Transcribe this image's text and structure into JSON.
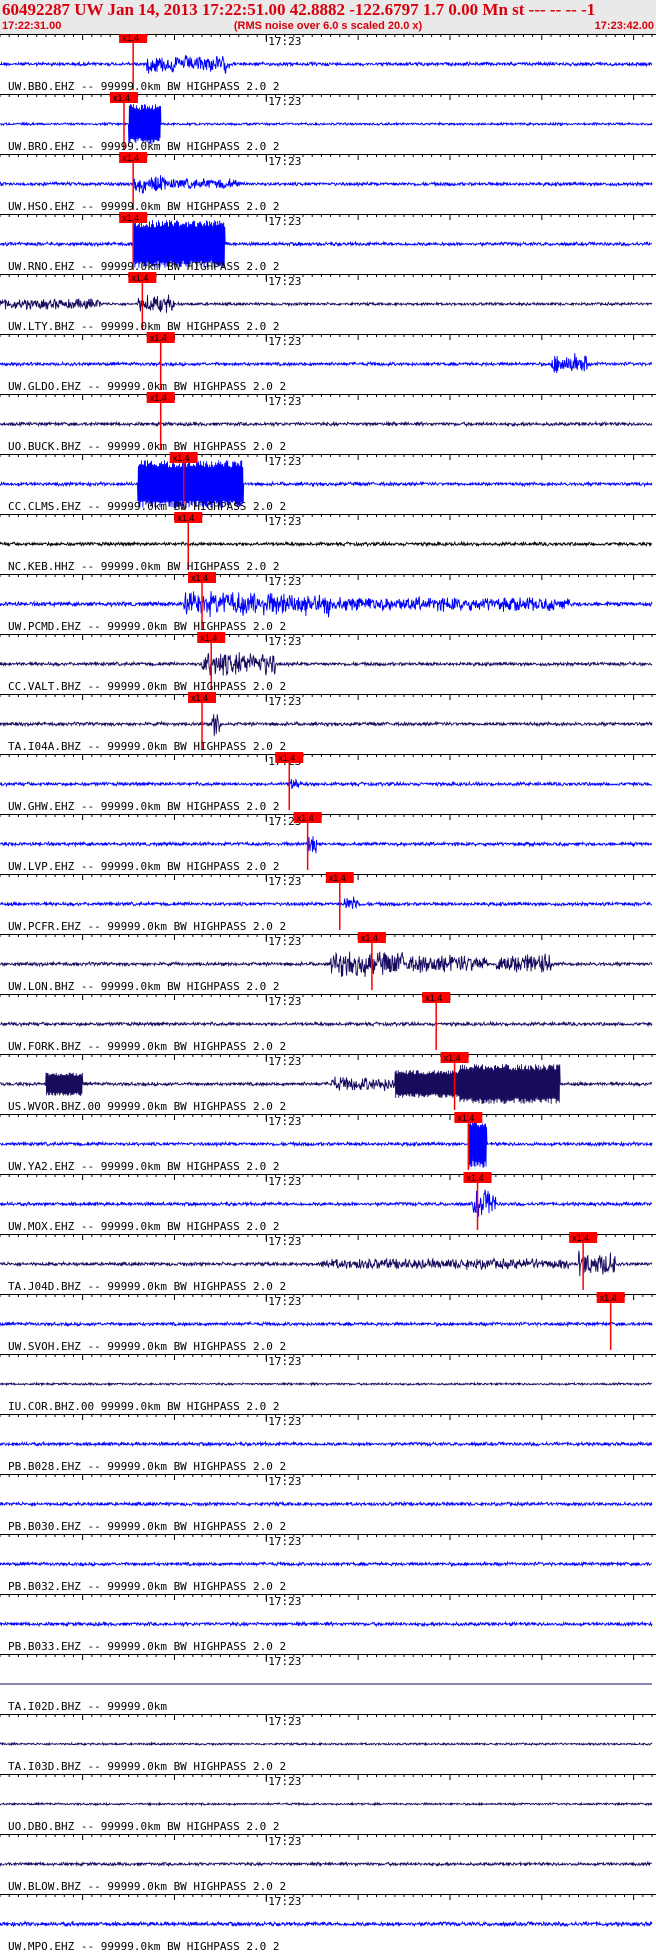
{
  "header": {
    "title": "60492287 UW Jan 14, 2013 17:22:51.00   42.8882 -122.6797  1.7 0.00 Mn st --- -- --   -1",
    "start_time": "17:22:31.00",
    "note": "(RMS noise over 6.0 s scaled 20.0 x)",
    "end_time": "17:23:42.00"
  },
  "colors": {
    "header_text": "#d8000c",
    "header_bg": "#e9e9e9",
    "blue": "#0000ff",
    "navy": "#1a0a5e",
    "black": "#000000",
    "pick": "#ff0000"
  },
  "chart_data": {
    "type": "seismogram record section",
    "time_window": [
      "17:22:31.00",
      "17:23:42.00"
    ],
    "minute_marker": "17:23",
    "pick_label": "x1.4",
    "traces": [
      {
        "label": "UW.BBO.EHZ -- 99999.0km BW  HIGHPASS  2.0  2",
        "color": "blue",
        "pick_s": 14.5,
        "amp": 0.5,
        "bursts": [
          [
            16,
            25,
            2.5
          ]
        ],
        "wide": 0
      },
      {
        "label": "UW.BRO.EHZ -- 99999.0km BW  HIGHPASS  2.0  2",
        "color": "blue",
        "pick_s": 13.5,
        "amp": 0.35,
        "bursts": [
          [
            14,
            17.5,
            5
          ]
        ],
        "wide": 1
      },
      {
        "label": "UW.HSO.EHZ -- 99999.0km BW  HIGHPASS  2.0  2",
        "color": "blue",
        "pick_s": 14.5,
        "amp": 0.5,
        "bursts": [
          [
            14.5,
            18,
            2.5
          ],
          [
            18,
            26,
            1.5
          ]
        ],
        "wide": 0
      },
      {
        "label": "UW.RNO.EHZ -- 99999.0km BW  HIGHPASS  2.0  2",
        "color": "blue",
        "pick_s": 14.5,
        "amp": 0.5,
        "bursts": [
          [
            14.5,
            24.5,
            6
          ]
        ],
        "wide": 1
      },
      {
        "label": "UW.LTY.BHZ -- 99999.0km BW  HIGHPASS  2.0  2",
        "color": "navy",
        "pick_s": 15.5,
        "amp": 0.4,
        "bursts": [
          [
            0,
            11,
            1.5
          ],
          [
            15,
            19,
            2.5
          ]
        ],
        "wide": 0
      },
      {
        "label": "UW.GLDO.EHZ -- 99999.0km BW  HIGHPASS  2.0  2",
        "color": "blue",
        "pick_s": 17.5,
        "amp": 0.5,
        "bursts": [
          [
            60,
            64,
            3
          ]
        ],
        "wide": 0
      },
      {
        "label": "UO.BUCK.BHZ -- 99999.0km BW  HIGHPASS  2.0  2",
        "color": "navy",
        "pick_s": 17.5,
        "amp": 0.5,
        "bursts": [],
        "wide": 0
      },
      {
        "label": "CC.CLMS.EHZ -- 99999.0km BW  HIGHPASS  2.0  2",
        "color": "blue",
        "pick_s": 20,
        "amp": 0.5,
        "bursts": [
          [
            15,
            26.5,
            6
          ]
        ],
        "wide": 1
      },
      {
        "label": "NC.KEB.HHZ -- 99999.0km BW  HIGHPASS  2.0  2",
        "color": "black",
        "pick_s": 20.5,
        "amp": 0.5,
        "bursts": [],
        "wide": 0
      },
      {
        "label": "UW.PCMD.EHZ -- 99999.0km BW  HIGHPASS  2.0  2",
        "color": "blue",
        "pick_s": 22,
        "amp": 0.6,
        "bursts": [
          [
            20,
            36,
            3.5
          ],
          [
            36,
            62,
            2
          ]
        ],
        "wide": 0
      },
      {
        "label": "CC.VALT.BHZ -- 99999.0km BW  HIGHPASS  2.0  2",
        "color": "navy",
        "pick_s": 23,
        "amp": 0.5,
        "bursts": [
          [
            22,
            30,
            3.5
          ]
        ],
        "wide": 0
      },
      {
        "label": "TA.I04A.BHZ -- 99999.0km BW  HIGHPASS  2.0  2",
        "color": "navy",
        "pick_s": 22,
        "amp": 0.5,
        "bursts": [
          [
            23,
            24,
            4
          ]
        ],
        "wide": 0
      },
      {
        "label": "UW.GHW.EHZ -- 99999.0km BW  HIGHPASS  2.0  2",
        "color": "blue",
        "pick_s": 31.5,
        "amp": 0.5,
        "bursts": [
          [
            31.5,
            32.5,
            2
          ]
        ],
        "wide": 0
      },
      {
        "label": "UW.LVP.EHZ -- 99999.0km BW  HIGHPASS  2.0  2",
        "color": "blue",
        "pick_s": 33.5,
        "amp": 0.5,
        "bursts": [
          [
            33.5,
            34.5,
            4
          ]
        ],
        "wide": 0
      },
      {
        "label": "UW.PCFR.EHZ -- 99999.0km BW  HIGHPASS  2.0  2",
        "color": "blue",
        "pick_s": 37,
        "amp": 0.5,
        "bursts": [
          [
            37.5,
            39,
            2.5
          ]
        ],
        "wide": 0
      },
      {
        "label": "UW.LON.BHZ -- 99999.0km BW  HIGHPASS  2.0  2",
        "color": "navy",
        "pick_s": 40.5,
        "amp": 0.5,
        "bursts": [
          [
            36,
            44,
            3.5
          ],
          [
            44,
            53,
            2.5
          ],
          [
            54,
            60,
            3
          ]
        ],
        "wide": 0
      },
      {
        "label": "UW.FORK.BHZ -- 99999.0km BW  HIGHPASS  2.0  2",
        "color": "navy",
        "pick_s": 47.5,
        "amp": 0.5,
        "bursts": [],
        "wide": 0
      },
      {
        "label": "US.WVOR.BHZ.00 99999.0km BW  HIGHPASS  2.0  2",
        "color": "navy",
        "pick_s": 49.5,
        "amp": 0.5,
        "bursts": [
          [
            5,
            9,
            3
          ],
          [
            36,
            43,
            2
          ],
          [
            43,
            50,
            3.5
          ],
          [
            50,
            61,
            5
          ]
        ],
        "wide": 1
      },
      {
        "label": "UW.YA2.EHZ -- 99999.0km BW  HIGHPASS  2.0  2",
        "color": "blue",
        "pick_s": 51,
        "amp": 0.5,
        "bursts": [
          [
            51,
            53,
            6
          ]
        ],
        "wide": 1
      },
      {
        "label": "UW.MOX.EHZ -- 99999.0km BW  HIGHPASS  2.0  2",
        "color": "blue",
        "pick_s": 52,
        "amp": 0.5,
        "bursts": [
          [
            51.5,
            54,
            4
          ]
        ],
        "wide": 0
      },
      {
        "label": "TA.J04D.BHZ -- 99999.0km BW  HIGHPASS  2.0  2",
        "color": "navy",
        "pick_s": 63.5,
        "amp": 0.5,
        "bursts": [
          [
            35,
            62,
            1.5
          ],
          [
            63,
            67,
            3.5
          ]
        ],
        "wide": 0
      },
      {
        "label": "UW.SVOH.EHZ -- 99999.0km BW  HIGHPASS  2.0  2",
        "color": "blue",
        "pick_s": 66.5,
        "amp": 0.5,
        "bursts": [],
        "wide": 0
      },
      {
        "label": "IU.COR.BHZ.00 99999.0km BW  HIGHPASS  2.0  2",
        "color": "navy",
        "pick_s": null,
        "amp": 0.3,
        "bursts": [],
        "wide": 0
      },
      {
        "label": "PB.B028.EHZ -- 99999.0km BW  HIGHPASS  2.0  2",
        "color": "blue",
        "pick_s": null,
        "amp": 0.5,
        "bursts": [],
        "wide": 0
      },
      {
        "label": "PB.B030.EHZ -- 99999.0km BW  HIGHPASS  2.0  2",
        "color": "blue",
        "pick_s": null,
        "amp": 0.5,
        "bursts": [],
        "wide": 0
      },
      {
        "label": "PB.B032.EHZ -- 99999.0km BW  HIGHPASS  2.0  2",
        "color": "blue",
        "pick_s": null,
        "amp": 0.5,
        "bursts": [],
        "wide": 0
      },
      {
        "label": "PB.B033.EHZ -- 99999.0km BW  HIGHPASS  2.0  2",
        "color": "blue",
        "pick_s": null,
        "amp": 0.5,
        "bursts": [],
        "wide": 0
      },
      {
        "label": "TA.I02D.BHZ -- 99999.0km",
        "color": "navy",
        "pick_s": null,
        "amp": 0,
        "bursts": [],
        "wide": 0
      },
      {
        "label": "TA.I03D.BHZ -- 99999.0km BW  HIGHPASS  2.0  2",
        "color": "navy",
        "pick_s": null,
        "amp": 0.3,
        "bursts": [],
        "wide": 0
      },
      {
        "label": "UO.DBO.BHZ -- 99999.0km BW  HIGHPASS  2.0  2",
        "color": "navy",
        "pick_s": null,
        "amp": 0.3,
        "bursts": [],
        "wide": 0
      },
      {
        "label": "UW.BLOW.BHZ -- 99999.0km BW  HIGHPASS  2.0  2",
        "color": "navy",
        "pick_s": null,
        "amp": 0.45,
        "bursts": [],
        "wide": 0
      },
      {
        "label": "UW.MPO.EHZ -- 99999.0km BW  HIGHPASS  2.0  2",
        "color": "blue",
        "pick_s": null,
        "amp": 0.6,
        "bursts": [],
        "wide": 0
      }
    ]
  }
}
